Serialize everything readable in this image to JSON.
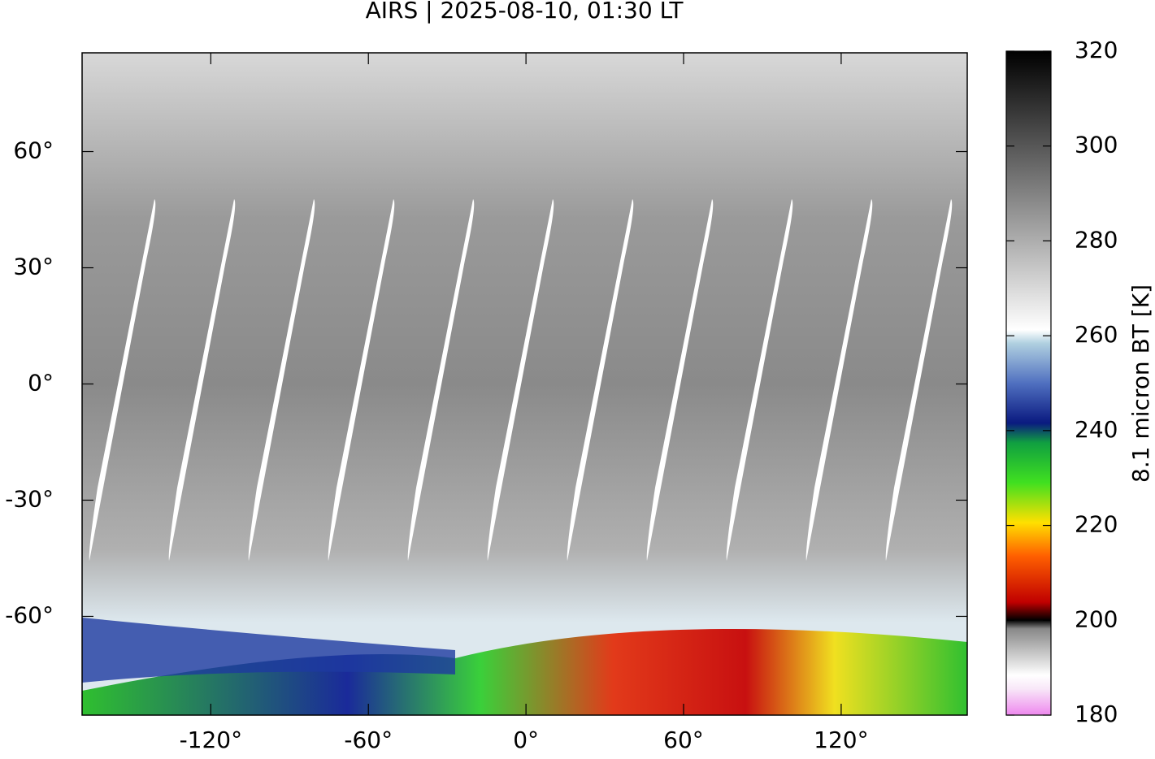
{
  "title": "AIRS | 2025-08-10, 01:30 LT",
  "map": {
    "xlim": [
      -169,
      168
    ],
    "ylim": [
      -85.5,
      85.5
    ],
    "xticks": [
      {
        "value": -120,
        "label": "-120°"
      },
      {
        "value": -60,
        "label": "-60°"
      },
      {
        "value": 0,
        "label": "0°"
      },
      {
        "value": 60,
        "label": "60°"
      },
      {
        "value": 120,
        "label": "120°"
      }
    ],
    "yticks": [
      {
        "value": -60,
        "label": "-60°"
      },
      {
        "value": -30,
        "label": "-30°"
      },
      {
        "value": 0,
        "label": "0°"
      },
      {
        "value": 30,
        "label": "30°"
      },
      {
        "value": 60,
        "label": "60°"
      }
    ]
  },
  "colorbar": {
    "label": "8.1 micron BT [K]",
    "lim": [
      180,
      320
    ],
    "ticks": [
      180,
      200,
      220,
      240,
      260,
      280,
      300,
      320
    ]
  }
}
